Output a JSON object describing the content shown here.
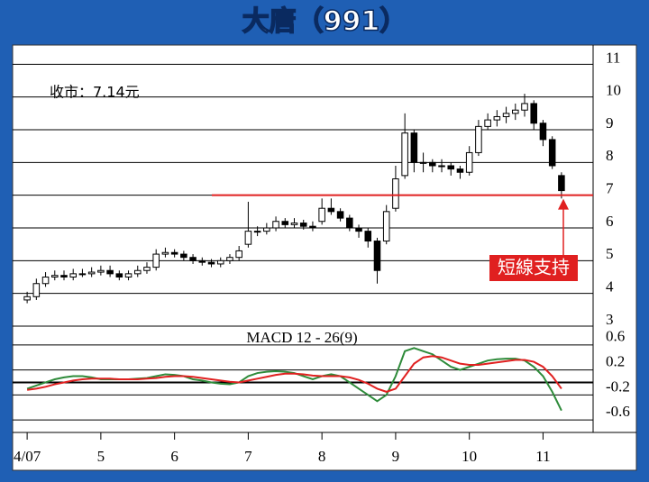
{
  "chart_data": [
    {
      "type": "candlestick",
      "title": "大唐（991）",
      "annotation_close": "收市：7.14元",
      "annotation_support": "短線支持",
      "categories": [
        "4/07",
        null,
        null,
        null,
        null,
        null,
        null,
        null,
        "5",
        null,
        null,
        null,
        null,
        null,
        null,
        null,
        "6",
        null,
        null,
        null,
        null,
        null,
        null,
        null,
        "7",
        null,
        null,
        null,
        null,
        null,
        null,
        null,
        "8",
        null,
        null,
        null,
        null,
        null,
        null,
        null,
        "9",
        null,
        null,
        null,
        null,
        null,
        null,
        null,
        "10",
        null,
        null,
        null,
        null,
        null,
        null,
        null,
        "11",
        null,
        null
      ],
      "open": [
        3.8,
        3.9,
        4.3,
        4.5,
        4.55,
        4.5,
        4.6,
        4.6,
        4.65,
        4.7,
        4.6,
        4.5,
        4.6,
        4.7,
        4.8,
        5.2,
        5.25,
        5.2,
        5.1,
        5.0,
        4.95,
        4.9,
        5.0,
        5.1,
        5.5,
        5.9,
        5.9,
        6.0,
        6.2,
        6.1,
        6.15,
        6.05,
        6.2,
        6.6,
        6.5,
        6.3,
        6.0,
        5.9,
        5.6,
        5.6,
        6.6,
        7.6,
        8.9,
        8.0,
        8.0,
        7.9,
        7.9,
        7.8,
        7.7,
        8.3,
        9.1,
        9.3,
        9.4,
        9.5,
        9.6,
        9.8,
        9.2,
        8.7,
        7.6
      ],
      "high": [
        4.05,
        4.45,
        4.65,
        4.7,
        4.7,
        4.75,
        4.75,
        4.8,
        4.85,
        4.85,
        4.7,
        4.7,
        4.85,
        4.95,
        5.35,
        5.4,
        5.35,
        5.3,
        5.2,
        5.1,
        5.05,
        5.1,
        5.2,
        5.45,
        6.8,
        6.05,
        6.15,
        6.35,
        6.3,
        6.3,
        6.25,
        6.2,
        6.9,
        6.9,
        6.6,
        6.4,
        6.1,
        6.0,
        5.7,
        6.7,
        7.9,
        9.5,
        9.0,
        8.3,
        8.1,
        8.1,
        8.0,
        7.9,
        8.5,
        9.3,
        9.5,
        9.6,
        9.7,
        9.8,
        10.1,
        9.9,
        9.3,
        8.8,
        7.7
      ],
      "low": [
        3.7,
        3.8,
        4.2,
        4.4,
        4.4,
        4.4,
        4.5,
        4.5,
        4.55,
        4.5,
        4.4,
        4.4,
        4.5,
        4.6,
        4.7,
        5.1,
        5.1,
        5.0,
        4.9,
        4.85,
        4.8,
        4.8,
        4.9,
        5.0,
        5.4,
        5.75,
        5.8,
        5.9,
        6.0,
        6.0,
        5.95,
        5.9,
        6.1,
        6.4,
        6.2,
        5.9,
        5.7,
        5.4,
        4.3,
        5.5,
        6.5,
        7.5,
        7.7,
        7.7,
        7.7,
        7.7,
        7.6,
        7.5,
        7.6,
        8.2,
        9.0,
        9.1,
        9.2,
        9.3,
        9.4,
        9.0,
        8.5,
        7.8,
        6.9
      ],
      "close": [
        3.9,
        4.3,
        4.5,
        4.55,
        4.5,
        4.6,
        4.6,
        4.65,
        4.7,
        4.6,
        4.5,
        4.6,
        4.7,
        4.8,
        5.2,
        5.25,
        5.2,
        5.1,
        5.0,
        4.95,
        4.9,
        5.0,
        5.1,
        5.3,
        5.9,
        5.9,
        6.0,
        6.2,
        6.1,
        6.15,
        6.05,
        6.0,
        6.6,
        6.5,
        6.3,
        6.0,
        5.9,
        5.6,
        4.7,
        6.5,
        7.5,
        8.9,
        8.0,
        8.0,
        7.9,
        7.9,
        7.8,
        7.7,
        8.3,
        9.1,
        9.3,
        9.4,
        9.5,
        9.6,
        9.8,
        9.2,
        8.7,
        7.9,
        7.14
      ],
      "support": 7,
      "support_color": "#e02020",
      "ylim": [
        3,
        11.45
      ],
      "yticks": [
        3,
        4,
        5,
        6,
        7,
        8,
        9,
        10,
        11
      ],
      "grid": true
    },
    {
      "type": "line",
      "title": "MACD 12 - 26(9)",
      "series": [
        {
          "color": "#2e8b3a",
          "values": [
            -0.1,
            -0.05,
            0.0,
            0.05,
            0.08,
            0.1,
            0.1,
            0.08,
            0.05,
            0.05,
            0.05,
            0.05,
            0.06,
            0.07,
            0.1,
            0.13,
            0.12,
            0.1,
            0.05,
            0.03,
            0.0,
            -0.02,
            -0.03,
            0.0,
            0.1,
            0.15,
            0.17,
            0.18,
            0.17,
            0.15,
            0.1,
            0.05,
            0.1,
            0.13,
            0.1,
            0.0,
            -0.1,
            -0.2,
            -0.3,
            -0.2,
            0.1,
            0.5,
            0.55,
            0.5,
            0.45,
            0.35,
            0.25,
            0.2,
            0.25,
            0.3,
            0.35,
            0.37,
            0.38,
            0.38,
            0.35,
            0.25,
            0.1,
            -0.15,
            -0.45
          ]
        },
        {
          "color": "#e02020",
          "values": [
            -0.12,
            -0.1,
            -0.07,
            -0.03,
            0.0,
            0.03,
            0.05,
            0.06,
            0.06,
            0.06,
            0.05,
            0.05,
            0.05,
            0.06,
            0.07,
            0.09,
            0.1,
            0.1,
            0.09,
            0.07,
            0.05,
            0.03,
            0.01,
            0.0,
            0.03,
            0.06,
            0.09,
            0.12,
            0.14,
            0.14,
            0.13,
            0.11,
            0.1,
            0.1,
            0.1,
            0.08,
            0.04,
            -0.02,
            -0.1,
            -0.15,
            -0.1,
            0.1,
            0.3,
            0.4,
            0.42,
            0.4,
            0.35,
            0.3,
            0.28,
            0.28,
            0.3,
            0.32,
            0.34,
            0.36,
            0.36,
            0.33,
            0.25,
            0.1,
            -0.1
          ]
        }
      ],
      "ylim": [
        -0.8,
        0.9
      ],
      "yticks": [
        0.6,
        0.2,
        -0.2,
        -0.6
      ],
      "grid": true
    }
  ]
}
